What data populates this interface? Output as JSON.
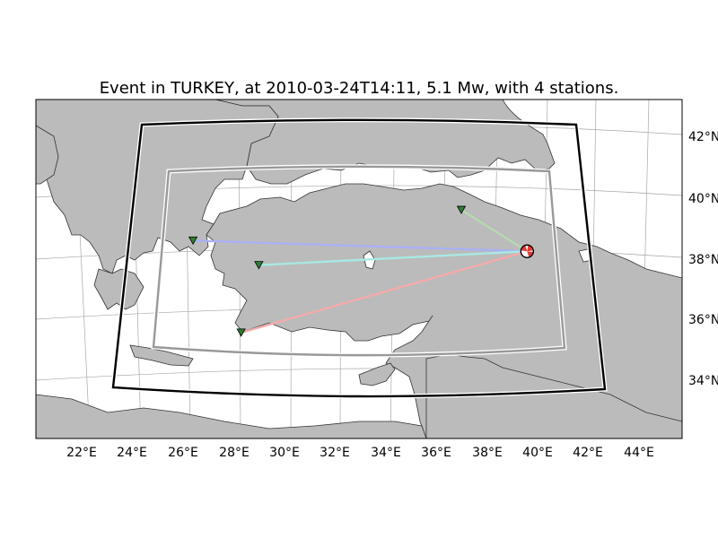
{
  "figure": {
    "title": "Event in TURKEY, at 2010-03-24T14:11, 5.1 Mw, with 4 stations."
  },
  "map": {
    "lon_ticks": [
      "22°E",
      "24°E",
      "26°E",
      "28°E",
      "30°E",
      "32°E",
      "34°E",
      "36°E",
      "38°E",
      "40°E",
      "42°E",
      "44°E"
    ],
    "lat_ticks": [
      "42°N",
      "40°N",
      "38°N",
      "36°N",
      "34°N"
    ],
    "event": {
      "lon": 39.6,
      "lat": 38.25
    },
    "stations": [
      {
        "lon": 26.4,
        "lat": 38.6,
        "ray_color": "#aab0f5"
      },
      {
        "lon": 29.0,
        "lat": 37.8,
        "ray_color": "#a8e8e4"
      },
      {
        "lon": 37.0,
        "lat": 39.6,
        "ray_color": "#b6d9b0"
      },
      {
        "lon": 28.3,
        "lat": 35.6,
        "ray_color": "#f5aaaa"
      }
    ],
    "colors": {
      "land": "#bbbbbb",
      "coast": "#333333",
      "ocean": "#ffffff",
      "outer_box": "#000000",
      "inner_box": "#999999",
      "station": "#2e7d32",
      "beachball": "#e53935"
    }
  }
}
